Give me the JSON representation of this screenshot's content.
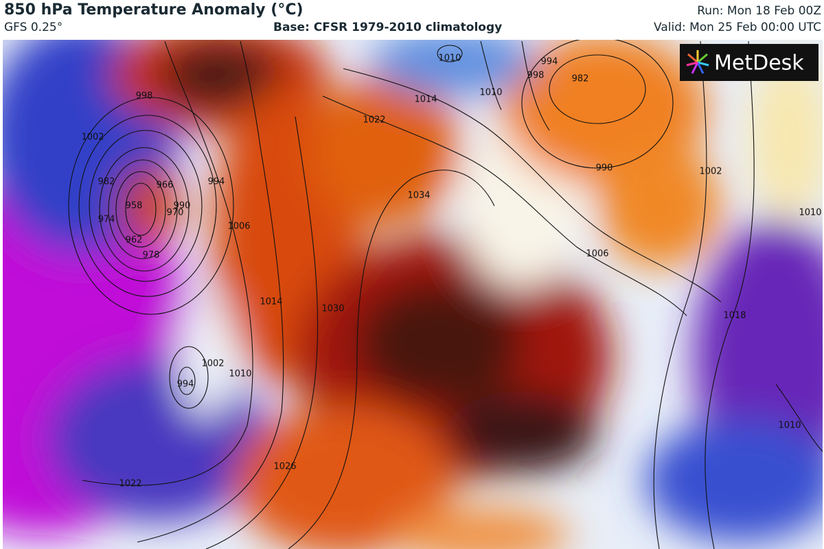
{
  "header": {
    "title": "850 hPa Temperature Anomaly (°C)",
    "model": "GFS 0.25°",
    "base": "Base: CFSR 1979-2010 climatology",
    "run": "Run: Mon 18 Feb 00Z",
    "valid": "Valid: Mon 25 Feb 00:00 UTC"
  },
  "logo": {
    "text": "MetDesk"
  },
  "isobar_labels": [
    "998",
    "1002",
    "982",
    "974",
    "958",
    "962",
    "966",
    "970",
    "978",
    "990",
    "994",
    "1006",
    "1014",
    "1010",
    "1002",
    "994",
    "1022",
    "1026",
    "1030",
    "1022",
    "1034",
    "1014",
    "1010",
    "1010",
    "994",
    "998",
    "982",
    "990",
    "1002",
    "1006",
    "1018",
    "1010",
    "1010"
  ]
}
